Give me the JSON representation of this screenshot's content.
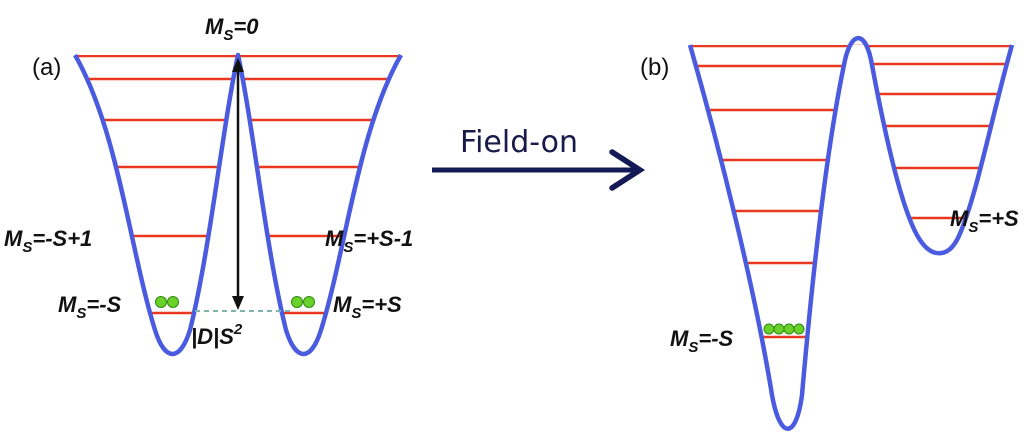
{
  "colors": {
    "well": "#4a5be0",
    "level": "#e8381f",
    "particle": "#6ad02a",
    "particle_stroke": "#2f8a10",
    "arrow": "#141a55",
    "text": "#111111",
    "barrier_dashed": "#7fb3b0"
  },
  "panel_a": {
    "label": "(a)",
    "top_label_main": "M",
    "top_label_sub": "S",
    "top_label_rest": "=0",
    "left_mid_main": "M",
    "left_mid_sub": "S",
    "left_mid_rest": "=-S+1",
    "right_mid_main": "M",
    "right_mid_sub": "S",
    "right_mid_rest": "=+S-1",
    "left_low_main": "M",
    "left_low_sub": "S",
    "left_low_rest": "=-S",
    "right_low_main": "M",
    "right_low_sub": "S",
    "right_low_rest": "=+S",
    "barrier_main": "|D|S",
    "barrier_sup": "2"
  },
  "arrow": {
    "label": "Field-on"
  },
  "panel_b": {
    "label": "(b)",
    "right_label_main": "M",
    "right_label_sub": "S",
    "right_label_rest": "=+S",
    "left_label_main": "M",
    "left_label_sub": "S",
    "left_label_rest": "=-S"
  }
}
